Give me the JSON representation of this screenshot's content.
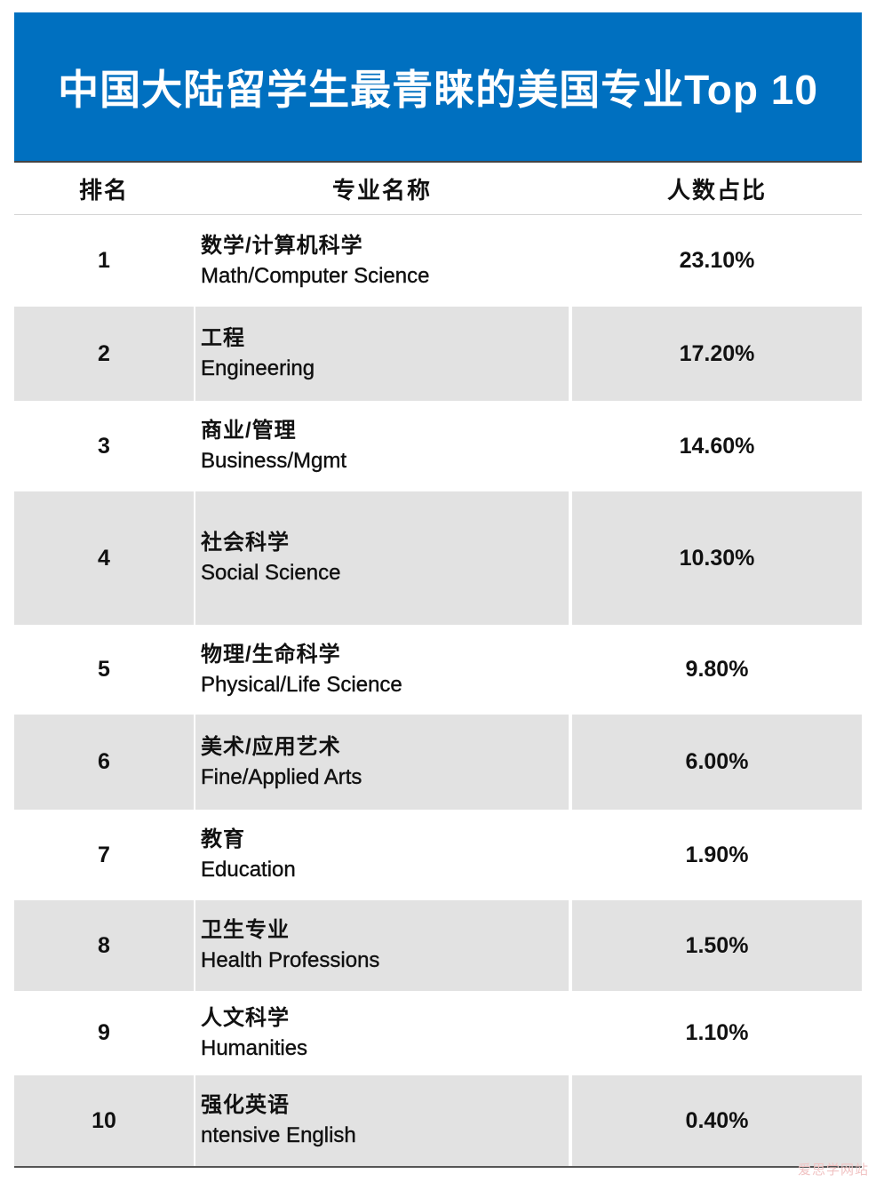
{
  "title": "中国大陆留学生最青睐的美国专业Top 10",
  "header": {
    "rank": "排名",
    "name": "专业名称",
    "percent": "人数占比"
  },
  "rows": [
    {
      "rank": "1",
      "name_cn": "数学/计算机科学",
      "name_en": "Math/Computer Science",
      "percent": "23.10%"
    },
    {
      "rank": "2",
      "name_cn": "工程",
      "name_en": "Engineering",
      "percent": "17.20%"
    },
    {
      "rank": "3",
      "name_cn": "商业/管理",
      "name_en": "Business/Mgmt",
      "percent": "14.60%"
    },
    {
      "rank": "4",
      "name_cn": "社会科学",
      "name_en": "Social Science",
      "percent": "10.30%"
    },
    {
      "rank": "5",
      "name_cn": "物理/生命科学",
      "name_en": "Physical/Life Science",
      "percent": "9.80%"
    },
    {
      "rank": "6",
      "name_cn": "美术/应用艺术",
      "name_en": "Fine/Applied Arts",
      "percent": "6.00%"
    },
    {
      "rank": "7",
      "name_cn": "教育",
      "name_en": "Education",
      "percent": "1.90%"
    },
    {
      "rank": "8",
      "name_cn": "卫生专业",
      "name_en": "Health Professions",
      "percent": "1.50%"
    },
    {
      "rank": "9",
      "name_cn": "人文科学",
      "name_en": "Humanities",
      "percent": "1.10%"
    },
    {
      "rank": "10",
      "name_cn": "强化英语",
      "name_en": "ntensive English",
      "percent": "0.40%"
    }
  ],
  "watermark": "爱思学网站",
  "colors": {
    "banner": "#0070c0",
    "shaded_row": "#e2e2e2"
  }
}
